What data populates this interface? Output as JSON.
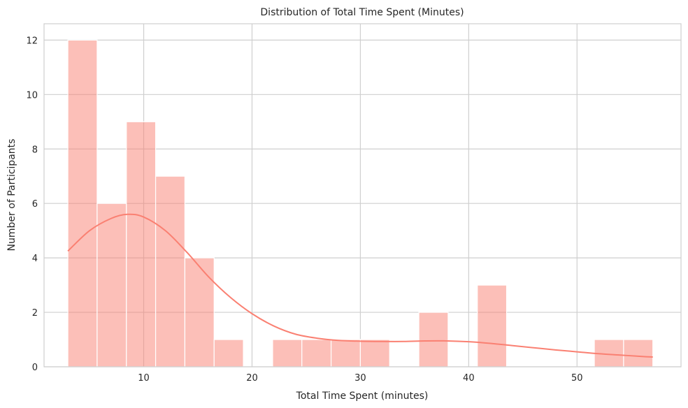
{
  "chart_data": {
    "type": "bar",
    "title": "Distribution of Total Time Spent (Minutes)",
    "xlabel": "Total Time Spent (minutes)",
    "ylabel": "Number of Participants",
    "xlim": [
      0.8,
      59.6
    ],
    "ylim": [
      0,
      12.6
    ],
    "xticks": [
      10,
      20,
      30,
      40,
      50
    ],
    "yticks": [
      0,
      2,
      4,
      6,
      8,
      10,
      12
    ],
    "grid": true,
    "bar_color": "#fa8072",
    "bins": [
      {
        "x0": 3.0,
        "x1": 5.7,
        "count": 12
      },
      {
        "x0": 5.7,
        "x1": 8.4,
        "count": 6
      },
      {
        "x0": 8.4,
        "x1": 11.1,
        "count": 9
      },
      {
        "x0": 11.1,
        "x1": 13.8,
        "count": 7
      },
      {
        "x0": 13.8,
        "x1": 16.5,
        "count": 4
      },
      {
        "x0": 16.5,
        "x1": 19.2,
        "count": 1
      },
      {
        "x0": 21.9,
        "x1": 24.6,
        "count": 1
      },
      {
        "x0": 24.6,
        "x1": 27.3,
        "count": 1
      },
      {
        "x0": 27.3,
        "x1": 30.0,
        "count": 1
      },
      {
        "x0": 30.0,
        "x1": 32.7,
        "count": 1
      },
      {
        "x0": 35.4,
        "x1": 38.1,
        "count": 2
      },
      {
        "x0": 40.8,
        "x1": 43.5,
        "count": 3
      },
      {
        "x0": 51.6,
        "x1": 54.3,
        "count": 1
      },
      {
        "x0": 54.3,
        "x1": 57.0,
        "count": 1
      }
    ],
    "kde": {
      "x": [
        3.0,
        5.0,
        7.0,
        8.5,
        10.0,
        12.0,
        14.0,
        16.0,
        18.0,
        20.0,
        22.0,
        24.0,
        26.0,
        28.0,
        30.0,
        32.0,
        34.0,
        36.0,
        38.0,
        40.0,
        42.0,
        44.0,
        46.0,
        48.0,
        50.0,
        52.0,
        54.0,
        56.0,
        57.0
      ],
      "y": [
        4.25,
        5.0,
        5.45,
        5.6,
        5.5,
        5.0,
        4.2,
        3.3,
        2.55,
        1.95,
        1.5,
        1.2,
        1.05,
        0.97,
        0.94,
        0.93,
        0.93,
        0.95,
        0.95,
        0.92,
        0.86,
        0.78,
        0.7,
        0.62,
        0.55,
        0.48,
        0.43,
        0.38,
        0.36
      ]
    }
  }
}
